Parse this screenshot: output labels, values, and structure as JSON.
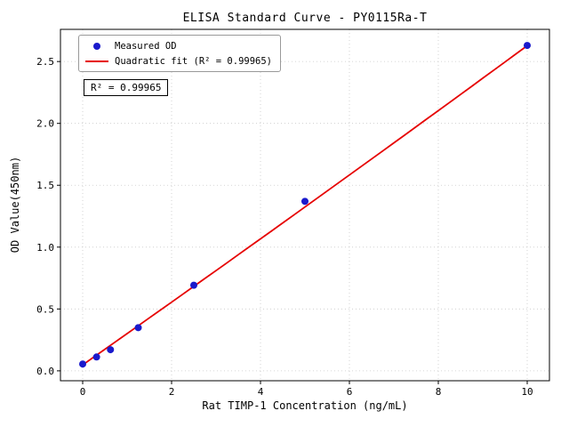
{
  "chart_data": {
    "type": "scatter",
    "title": "ELISA Standard Curve - PY0115Ra-T",
    "xlabel": "Rat TIMP-1 Concentration (ng/mL)",
    "ylabel": "OD Value(450nm)",
    "xlim": [
      -0.5,
      10.5
    ],
    "ylim": [
      -0.08,
      2.76
    ],
    "grid": true,
    "grid_style": "dotted",
    "x_ticks": {
      "values": [
        0,
        2,
        4,
        6,
        8,
        10
      ],
      "labels": [
        "0",
        "2",
        "4",
        "6",
        "8",
        "10"
      ]
    },
    "y_ticks": {
      "values": [
        0,
        0.5,
        1.0,
        1.5,
        2.0,
        2.5
      ],
      "labels": [
        "0.0",
        "0.5",
        "1.0",
        "1.5",
        "2.0",
        "2.5"
      ]
    },
    "series": [
      {
        "name": "Measured OD",
        "type": "scatter",
        "color": "#1a1acc",
        "x": [
          0,
          0.3125,
          0.625,
          1.25,
          2.5,
          5,
          10
        ],
        "y": [
          0.055,
          0.112,
          0.171,
          0.349,
          0.692,
          1.37,
          2.63
        ]
      },
      {
        "name": "Quadratic fit",
        "type": "line",
        "color": "#e60000",
        "fit": "quadratic",
        "coefficients": [
          0.048,
          0.2525,
          0.00055
        ],
        "x_range": [
          0,
          10
        ]
      }
    ],
    "legend": {
      "position": "upper-left",
      "entries": [
        {
          "label": "Measured OD",
          "marker": "dot",
          "color": "#1a1acc"
        },
        {
          "label": "Quadratic fit (R² = 0.99965)",
          "marker": "line",
          "color": "#e60000"
        }
      ]
    },
    "annotation": {
      "text": "R² = 0.99965"
    },
    "r_squared": 0.99965
  }
}
